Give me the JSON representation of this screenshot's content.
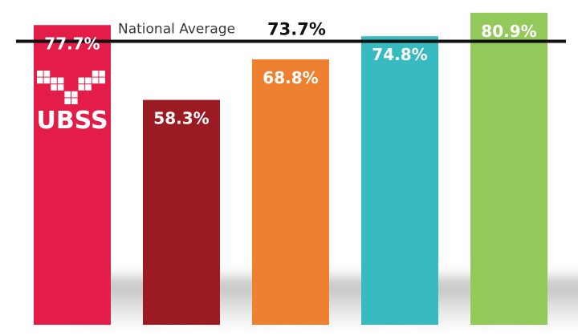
{
  "chart_data": {
    "type": "bar",
    "title": "",
    "xlabel": "",
    "ylabel": "",
    "categories": [
      "UBSS",
      "",
      "",
      "",
      ""
    ],
    "values": [
      77.7,
      58.3,
      68.8,
      74.8,
      80.9
    ],
    "value_labels": [
      "77.7%",
      "58.3%",
      "68.8%",
      "74.8%",
      "80.9%"
    ],
    "colors": [
      "#e31c48",
      "#9b1b22",
      "#ee8130",
      "#37bbc0",
      "#93c95a"
    ],
    "reference_line": {
      "label": "National Average",
      "value": 73.7,
      "value_label": "73.7%",
      "color": "#111111"
    },
    "logo_text": "UBSS",
    "ylim": [
      0,
      100
    ],
    "grid": false,
    "legend": "none"
  }
}
